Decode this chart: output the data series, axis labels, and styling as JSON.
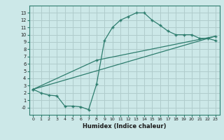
{
  "title": "",
  "xlabel": "Humidex (Indice chaleur)",
  "bg_color": "#cce8e8",
  "grid_color": "#b0cccc",
  "line_color": "#2e7d6e",
  "xlim": [
    -0.5,
    23.5
  ],
  "ylim": [
    -1,
    14
  ],
  "xticks": [
    0,
    1,
    2,
    3,
    4,
    5,
    6,
    7,
    8,
    9,
    10,
    11,
    12,
    13,
    14,
    15,
    16,
    17,
    18,
    19,
    20,
    21,
    22,
    23
  ],
  "yticks": [
    0,
    1,
    2,
    3,
    4,
    5,
    6,
    7,
    8,
    9,
    10,
    11,
    12,
    13
  ],
  "ytick_labels": [
    "-0",
    "1",
    "2",
    "3",
    "4",
    "5",
    "6",
    "7",
    "8",
    "9",
    "10",
    "11",
    "12",
    "13"
  ],
  "curve1_x": [
    0,
    1,
    2,
    3,
    4,
    5,
    6,
    7,
    8,
    9,
    10,
    11,
    12,
    13,
    14,
    15,
    16,
    17,
    18,
    19,
    20,
    21,
    22,
    23
  ],
  "curve1_y": [
    2.5,
    2.0,
    1.7,
    1.6,
    0.2,
    0.2,
    0.1,
    -0.3,
    3.2,
    9.2,
    11.0,
    12.0,
    12.5,
    13.0,
    13.0,
    12.0,
    11.3,
    10.5,
    10.0,
    10.0,
    10.0,
    9.5,
    9.5,
    9.2
  ],
  "curve2_x": [
    0,
    8,
    23
  ],
  "curve2_y": [
    2.5,
    6.5,
    9.8
  ],
  "curve3_x": [
    0,
    23
  ],
  "curve3_y": [
    2.5,
    9.8
  ]
}
